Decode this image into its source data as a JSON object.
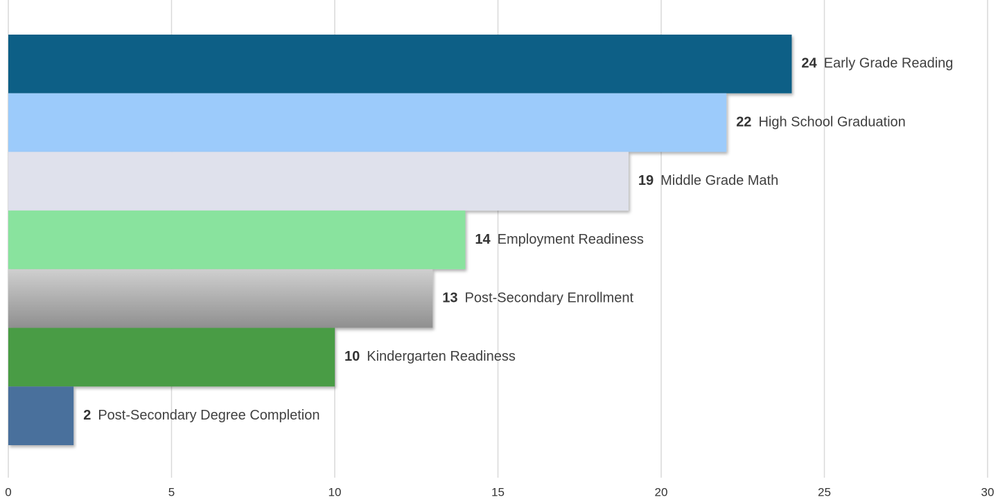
{
  "chart_data": {
    "type": "bar",
    "orientation": "horizontal",
    "categories": [
      "Early Grade Reading",
      "High School Graduation",
      "Middle Grade Math",
      "Employment Readiness",
      "Post-Secondary Enrollment",
      "Kindergarten Readiness",
      "Post-Secondary Degree Completion"
    ],
    "values": [
      24,
      22,
      19,
      14,
      13,
      10,
      2
    ],
    "colors": [
      "#0b5f86",
      "#9ccbfb",
      "#dfe1ec",
      "#89e39e",
      "#a9a9a9",
      "#4a9c45",
      "#4a6f9c"
    ],
    "xlim": [
      0,
      30
    ],
    "xticks": [
      0,
      5,
      10,
      15,
      20,
      25,
      30
    ],
    "grid": true
  }
}
